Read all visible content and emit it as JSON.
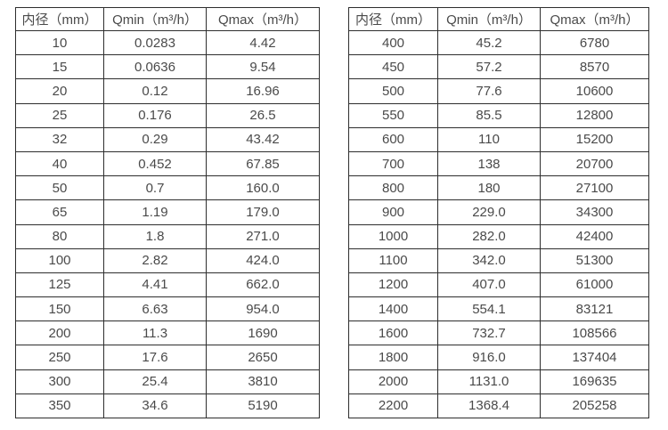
{
  "page": {
    "background_color": "#ffffff",
    "text_color": "#4a4a4a",
    "border_color": "#2e2e2e"
  },
  "tables": [
    {
      "name": "flow-table-small-diameters",
      "headers": [
        "内径（mm）",
        "Qmin（m³/h）",
        "Qmax（m³/h）"
      ],
      "rows": [
        [
          "10",
          "0.0283",
          "4.42"
        ],
        [
          "15",
          "0.0636",
          "9.54"
        ],
        [
          "20",
          "0.12",
          "16.96"
        ],
        [
          "25",
          "0.176",
          "26.5"
        ],
        [
          "32",
          "0.29",
          "43.42"
        ],
        [
          "40",
          "0.452",
          "67.85"
        ],
        [
          "50",
          "0.7",
          "160.0"
        ],
        [
          "65",
          "1.19",
          "179.0"
        ],
        [
          "80",
          "1.8",
          "271.0"
        ],
        [
          "100",
          "2.82",
          "424.0"
        ],
        [
          "125",
          "4.41",
          "662.0"
        ],
        [
          "150",
          "6.63",
          "954.0"
        ],
        [
          "200",
          "11.3",
          "1690"
        ],
        [
          "250",
          "17.6",
          "2650"
        ],
        [
          "300",
          "25.4",
          "3810"
        ],
        [
          "350",
          "34.6",
          "5190"
        ]
      ]
    },
    {
      "name": "flow-table-large-diameters",
      "headers": [
        "内径（mm）",
        "Qmin（m³/h）",
        "Qmax（m³/h）"
      ],
      "rows": [
        [
          "400",
          "45.2",
          "6780"
        ],
        [
          "450",
          "57.2",
          "8570"
        ],
        [
          "500",
          "77.6",
          "10600"
        ],
        [
          "550",
          "85.5",
          "12800"
        ],
        [
          "600",
          "110",
          "15200"
        ],
        [
          "700",
          "138",
          "20700"
        ],
        [
          "800",
          "180",
          "27100"
        ],
        [
          "900",
          "229.0",
          "34300"
        ],
        [
          "1000",
          "282.0",
          "42400"
        ],
        [
          "1100",
          "342.0",
          "51300"
        ],
        [
          "1200",
          "407.0",
          "61000"
        ],
        [
          "1400",
          "554.1",
          "83121"
        ],
        [
          "1600",
          "732.7",
          "108566"
        ],
        [
          "1800",
          "916.0",
          "137404"
        ],
        [
          "2000",
          "1131.0",
          "169635"
        ],
        [
          "2200",
          "1368.4",
          "205258"
        ]
      ]
    }
  ]
}
